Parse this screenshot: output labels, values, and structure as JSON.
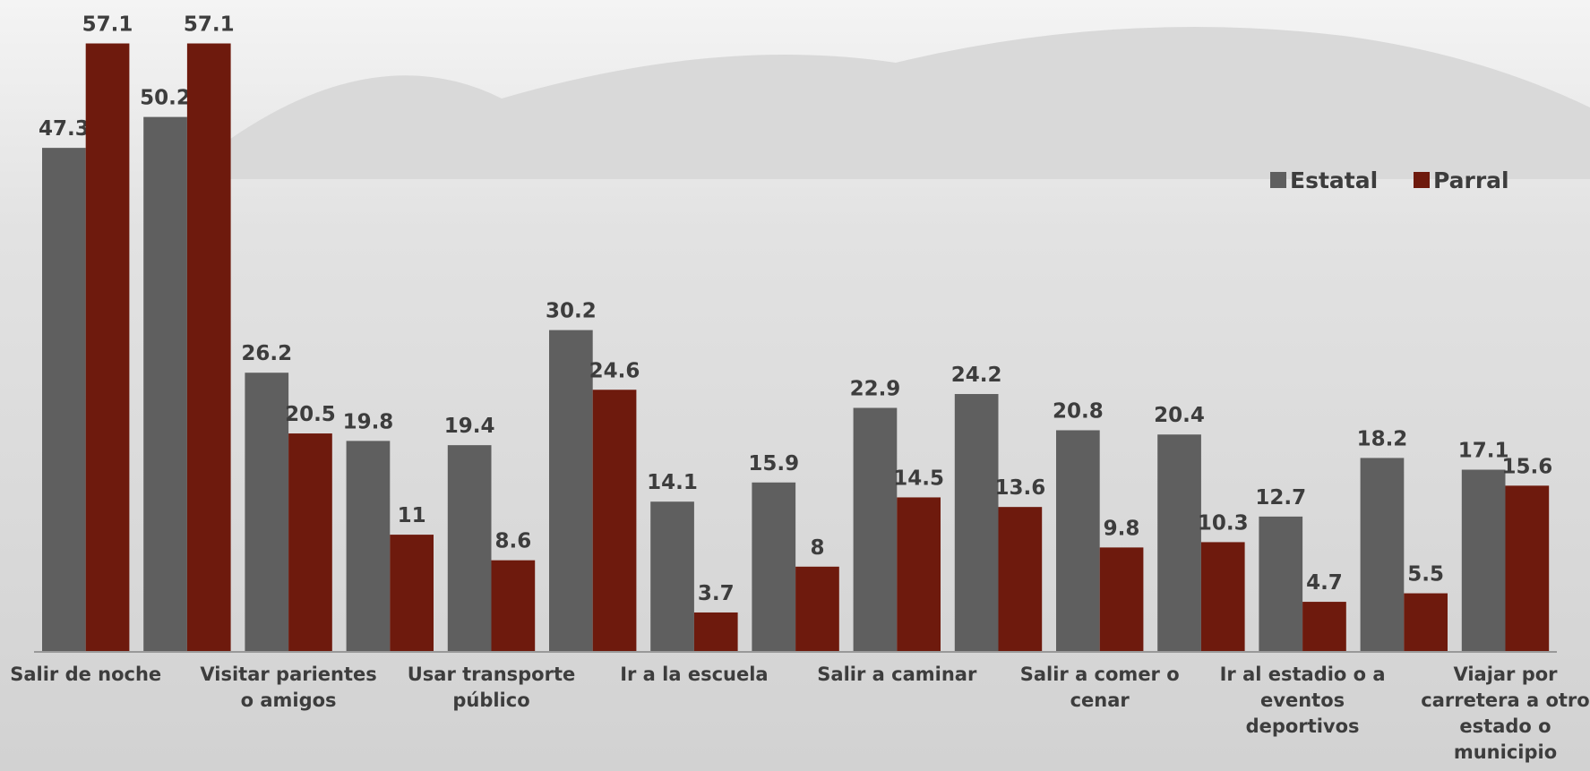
{
  "chart_data": {
    "type": "bar",
    "categories": [
      "Salir de noche",
      null,
      "Visitar parientes o amigos",
      null,
      "Usar transporte público",
      null,
      "Ir a la escuela",
      null,
      "Salir a caminar",
      null,
      "Salir a comer o cenar",
      null,
      "Ir al estadio o a eventos deportivos",
      null,
      "Viajar por carretera a otro estado o municipio"
    ],
    "series": [
      {
        "name": "Estatal",
        "color": "#5f5f5f",
        "values": [
          47.3,
          50.2,
          26.2,
          19.8,
          19.4,
          30.2,
          14.1,
          15.9,
          22.9,
          24.2,
          20.8,
          20.4,
          12.7,
          18.2,
          17.1
        ]
      },
      {
        "name": "Parral",
        "color": "#6e1a0d",
        "values": [
          57.1,
          57.1,
          20.5,
          11,
          8.6,
          24.6,
          3.7,
          8,
          14.5,
          13.6,
          9.8,
          10.3,
          4.7,
          5.5,
          15.6
        ]
      }
    ],
    "ylim": [
      0,
      60
    ],
    "legend": "upper right"
  }
}
